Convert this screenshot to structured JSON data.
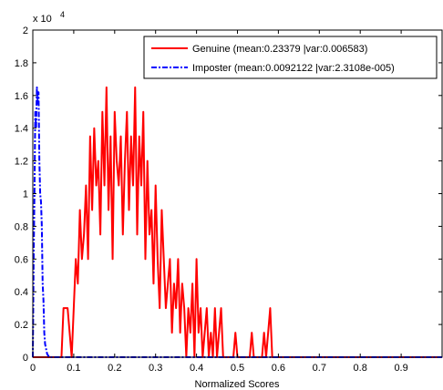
{
  "chart_data": {
    "type": "line",
    "title": "",
    "xlabel": "Normalized Scores",
    "ylabel": "",
    "y_exponent_label": "x 10",
    "y_exponent_power": "4",
    "xlim": [
      0,
      1
    ],
    "ylim": [
      0,
      2
    ],
    "x_ticks": [
      0,
      0.1,
      0.2,
      0.3,
      0.4,
      0.5,
      0.6,
      0.7,
      0.8,
      0.9
    ],
    "x_tick_labels": [
      "0",
      "0.1",
      "0.2",
      "0.3",
      "0.4",
      "0.5",
      "0.6",
      "0.7",
      "0.8",
      "0.9"
    ],
    "y_ticks": [
      0,
      0.2,
      0.4,
      0.6,
      0.8,
      1,
      1.2,
      1.4,
      1.6,
      1.8,
      2
    ],
    "y_tick_labels": [
      "0",
      "0.2",
      "0.4",
      "0.6",
      "0.8",
      "1",
      "1.2",
      "1.4",
      "1.6",
      "1.8",
      "2"
    ],
    "grid": false,
    "legend_position": "top-right",
    "series": [
      {
        "name": "Genuine (mean:0.23379 |var:0.006583)",
        "color": "#ff0000",
        "style": "solid",
        "x": [
          0,
          0.07,
          0.075,
          0.08,
          0.085,
          0.09,
          0.095,
          0.1,
          0.105,
          0.11,
          0.115,
          0.12,
          0.125,
          0.13,
          0.135,
          0.14,
          0.145,
          0.15,
          0.155,
          0.16,
          0.165,
          0.17,
          0.175,
          0.18,
          0.185,
          0.19,
          0.195,
          0.2,
          0.205,
          0.21,
          0.215,
          0.22,
          0.225,
          0.23,
          0.235,
          0.24,
          0.245,
          0.25,
          0.255,
          0.26,
          0.265,
          0.27,
          0.275,
          0.28,
          0.285,
          0.29,
          0.295,
          0.3,
          0.305,
          0.31,
          0.315,
          0.32,
          0.325,
          0.33,
          0.335,
          0.34,
          0.345,
          0.35,
          0.355,
          0.36,
          0.365,
          0.37,
          0.375,
          0.38,
          0.385,
          0.39,
          0.395,
          0.4,
          0.405,
          0.41,
          0.415,
          0.42,
          0.425,
          0.43,
          0.435,
          0.44,
          0.445,
          0.45,
          0.455,
          0.46,
          0.465,
          0.47,
          0.48,
          0.49,
          0.495,
          0.5,
          0.505,
          0.51,
          0.52,
          0.53,
          0.535,
          0.54,
          0.545,
          0.55,
          0.56,
          0.565,
          0.57,
          0.575,
          0.58,
          0.585,
          0.59,
          1.0
        ],
        "values": [
          0,
          0,
          0.3,
          0.3,
          0.3,
          0.15,
          0,
          0.3,
          0.6,
          0.45,
          0.9,
          0.6,
          0.75,
          1.05,
          0.6,
          1.35,
          0.9,
          1.4,
          1.05,
          1.2,
          0.75,
          1.5,
          1.05,
          1.65,
          0.9,
          1.35,
          0.6,
          1.5,
          1.2,
          1.05,
          1.35,
          0.75,
          1.2,
          1.5,
          0.9,
          1.35,
          1.05,
          1.65,
          0.75,
          1.35,
          1.05,
          1.5,
          0.6,
          1.2,
          0.75,
          0.9,
          0.45,
          1.05,
          0.6,
          0.3,
          0.9,
          0.6,
          0.3,
          0.45,
          0.6,
          0.15,
          0.45,
          0.3,
          0.6,
          0.15,
          0.45,
          0.3,
          0,
          0.3,
          0.15,
          0.45,
          0,
          0.6,
          0.15,
          0.3,
          0,
          0.15,
          0.3,
          0,
          0.15,
          0,
          0.3,
          0,
          0.15,
          0.3,
          0,
          0,
          0,
          0,
          0.15,
          0,
          0,
          0,
          0,
          0,
          0.15,
          0,
          0,
          0,
          0,
          0.15,
          0,
          0.15,
          0.3,
          0,
          0,
          0
        ]
      },
      {
        "name": "Imposter (mean:0.0092122 |var:2.3108e-005)",
        "color": "#0000ff",
        "style": "dashdot",
        "x": [
          0,
          0.002,
          0.004,
          0.006,
          0.008,
          0.01,
          0.012,
          0.014,
          0.016,
          0.018,
          0.02,
          0.022,
          0.024,
          0.026,
          0.028,
          0.03,
          0.035,
          0.04,
          0.05,
          0.1,
          0.3,
          0.6,
          1.0
        ],
        "values": [
          0,
          0.6,
          1.0,
          1.5,
          1.4,
          1.65,
          1.55,
          1.62,
          1.2,
          1.0,
          0.95,
          0.8,
          0.45,
          0.35,
          0.15,
          0.08,
          0.02,
          0,
          0,
          0,
          0,
          0,
          0
        ]
      }
    ]
  }
}
